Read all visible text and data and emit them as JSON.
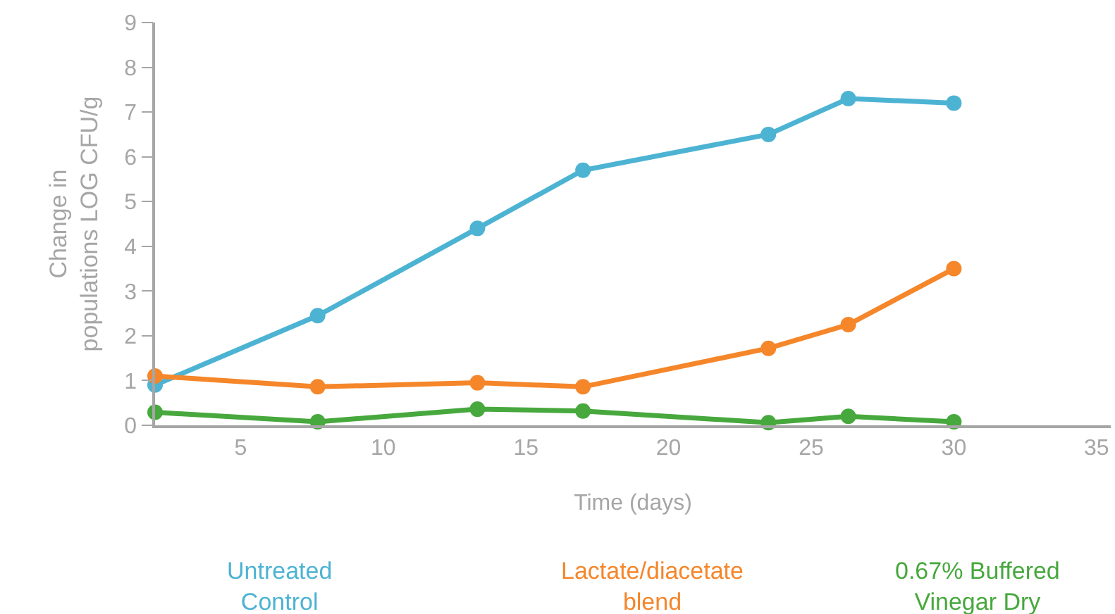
{
  "chart_data": {
    "type": "line",
    "xlabel": "Time (days)",
    "ylabel": "Change in populations LOG CFU/g",
    "xlim": [
      2,
      35.5
    ],
    "xticks": [
      5,
      10,
      15,
      20,
      25,
      30,
      35
    ],
    "ylim": [
      0,
      9
    ],
    "yticks": [
      0,
      1,
      2,
      3,
      4,
      5,
      6,
      7,
      8,
      9
    ],
    "grid": false,
    "legend": "bottom",
    "marker": "circle",
    "line_style": "solid",
    "x": [
      2,
      7.7,
      13.3,
      17,
      23.5,
      26.3,
      30
    ],
    "series": [
      {
        "name": "Untreated Control",
        "color": "#4db3d3",
        "values": [
          0.9,
          2.45,
          4.4,
          5.7,
          6.5,
          7.3,
          7.2
        ]
      },
      {
        "name": "Lactate/diacetate blend",
        "color": "#f5862a",
        "values": [
          1.1,
          0.86,
          0.95,
          0.86,
          1.72,
          2.25,
          3.5
        ]
      },
      {
        "name": "0.67% Buffered Vinegar Dry",
        "color": "#47a83d",
        "values": [
          0.29,
          0.08,
          0.36,
          0.32,
          0.06,
          0.2,
          0.08
        ]
      }
    ]
  }
}
